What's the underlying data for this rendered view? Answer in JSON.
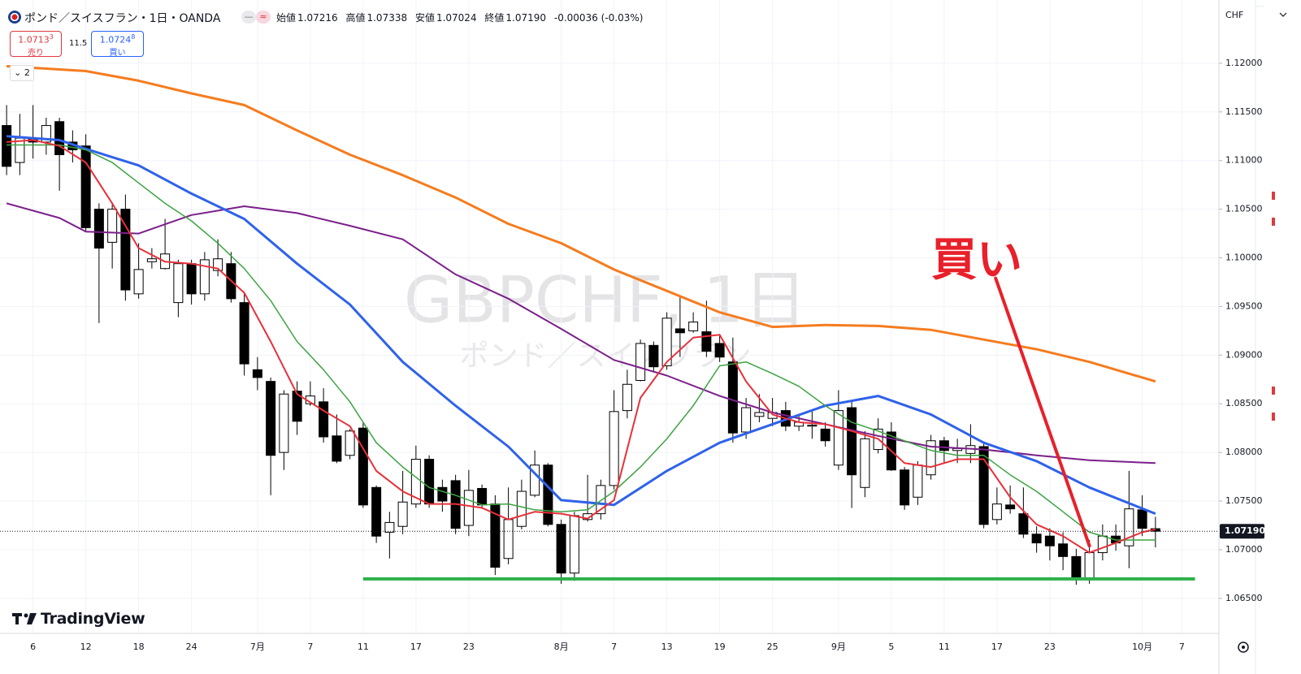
{
  "header": {
    "symbol": "ポンド／スイスフラン・1日・OANDA",
    "open_label": "始値",
    "open": "1.07216",
    "high_label": "高値",
    "high": "1.07338",
    "low_label": "安値",
    "low": "1.07024",
    "close_label": "終値",
    "close": "1.07190",
    "change": "-0.00036 (-0.03%)"
  },
  "trade": {
    "sell_main": "1.0713",
    "sell_sup": "3",
    "sell_label": "売り",
    "spread": "11.5",
    "buy_main": "1.0724",
    "buy_sup": "8",
    "buy_label": "買い"
  },
  "indicators_count": "2",
  "currency": "CHF",
  "brand": "TradingView",
  "chart_data": {
    "type": "candlestick",
    "watermark": "GBPCHF, 1日",
    "watermark_subtitle": "ポンド／スイスフラン",
    "up_color": "#ffffff",
    "down_color": "#000000",
    "ylim": [
      1.0614,
      1.1265
    ],
    "yticks": [
      {
        "value": 1.12,
        "label": "1.12000"
      },
      {
        "value": 1.115,
        "label": "1.11500"
      },
      {
        "value": 1.11,
        "label": "1.11000"
      },
      {
        "value": 1.105,
        "label": "1.10500"
      },
      {
        "value": 1.1,
        "label": "1.10000"
      },
      {
        "value": 1.095,
        "label": "1.09500"
      },
      {
        "value": 1.09,
        "label": "1.09000"
      },
      {
        "value": 1.085,
        "label": "1.08500"
      },
      {
        "value": 1.08,
        "label": "1.08000"
      },
      {
        "value": 1.075,
        "label": "1.07500"
      },
      {
        "value": 1.07,
        "label": "1.07000"
      },
      {
        "value": 1.065,
        "label": "1.06500"
      }
    ],
    "grid": true,
    "last_price": {
      "value": 1.0719,
      "label": "1.07190"
    },
    "categories": [
      null,
      null,
      "6",
      null,
      null,
      null,
      "12",
      null,
      null,
      null,
      "18",
      null,
      null,
      null,
      "24",
      null,
      null,
      null,
      null,
      "7月",
      null,
      null,
      null,
      "7",
      null,
      null,
      null,
      "11",
      null,
      null,
      null,
      "17",
      null,
      null,
      null,
      "23",
      null,
      null,
      null,
      null,
      null,
      null,
      "8月",
      null,
      null,
      null,
      "7",
      null,
      null,
      null,
      "13",
      null,
      null,
      null,
      "19",
      null,
      null,
      null,
      "25",
      null,
      null,
      null,
      null,
      "9月",
      null,
      null,
      null,
      "5",
      null,
      null,
      null,
      "11",
      null,
      null,
      null,
      "17",
      null,
      null,
      null,
      "23",
      null,
      null,
      null,
      null,
      null,
      null,
      "10月",
      null,
      null,
      "7",
      null,
      null
    ],
    "candles": [
      [
        1.1136,
        1.1157,
        1.1085,
        1.1094
      ],
      [
        1.1098,
        1.1148,
        1.1085,
        1.1123
      ],
      [
        1.1123,
        1.1157,
        1.1102,
        1.1119
      ],
      [
        1.1119,
        1.1144,
        1.1106,
        1.1136
      ],
      [
        1.114,
        1.1144,
        1.1069,
        1.1106
      ],
      [
        1.1119,
        1.1131,
        1.1098,
        1.1111
      ],
      [
        1.1115,
        1.1127,
        1.1027,
        1.1031
      ],
      [
        1.105,
        1.1056,
        1.0933,
        1.101
      ],
      [
        1.1016,
        1.1056,
        1.0989,
        1.105
      ],
      [
        1.105,
        1.1065,
        1.0956,
        1.0967
      ],
      [
        1.0963,
        1.1015,
        1.0958,
        1.0988
      ],
      [
        1.0996,
        1.101,
        1.0989,
        1.0999
      ],
      [
        1.0989,
        1.104,
        1.0988,
        1.1004
      ],
      [
        1.0954,
        1.0998,
        1.0939,
        1.0994
      ],
      [
        1.0994,
        1.0998,
        1.0952,
        1.0963
      ],
      [
        1.0963,
        1.1006,
        1.0956,
        1.0998
      ],
      [
        1.0987,
        1.1019,
        1.0981,
        1.0999
      ],
      [
        1.0994,
        1.1006,
        1.0954,
        1.0958
      ],
      [
        1.0954,
        1.0964,
        1.0879,
        1.0891
      ],
      [
        1.0885,
        1.0898,
        1.0864,
        1.0877
      ],
      [
        1.0873,
        1.0877,
        1.0756,
        1.0797
      ],
      [
        1.08,
        1.0864,
        1.0782,
        1.086
      ],
      [
        1.0863,
        1.0873,
        1.0818,
        1.0832
      ],
      [
        1.085,
        1.0873,
        1.0848,
        1.0858
      ],
      [
        1.0852,
        1.0866,
        1.081,
        1.0816
      ],
      [
        1.0817,
        1.0839,
        1.0789,
        1.0791
      ],
      [
        1.0797,
        1.0824,
        1.0793,
        1.0822
      ],
      [
        1.0825,
        1.0831,
        1.0743,
        1.0746
      ],
      [
        1.0764,
        1.0766,
        1.0707,
        1.0714
      ],
      [
        1.0718,
        1.0739,
        1.0691,
        1.0728
      ],
      [
        1.0724,
        1.0781,
        1.0716,
        1.0749
      ],
      [
        1.0747,
        1.0807,
        1.0743,
        1.0793
      ],
      [
        1.0793,
        1.0797,
        1.0743,
        1.0747
      ],
      [
        1.0764,
        1.0772,
        1.0739,
        1.075
      ],
      [
        1.0771,
        1.0777,
        1.0716,
        1.0722
      ],
      [
        1.0725,
        1.0782,
        1.0714,
        1.0761
      ],
      [
        1.0763,
        1.0767,
        1.0743,
        1.0746
      ],
      [
        1.0747,
        1.0756,
        1.0674,
        1.0682
      ],
      [
        1.0691,
        1.0764,
        1.0685,
        1.0731
      ],
      [
        1.0724,
        1.0772,
        1.0721,
        1.076
      ],
      [
        1.0756,
        1.0802,
        1.0754,
        1.0787
      ],
      [
        1.0787,
        1.0789,
        1.0724,
        1.0726
      ],
      [
        1.0726,
        1.0731,
        1.0665,
        1.0676
      ],
      [
        1.0676,
        1.0739,
        1.0668,
        1.0735
      ],
      [
        1.0731,
        1.0777,
        1.0729,
        1.0737
      ],
      [
        1.0737,
        1.0772,
        1.0731,
        1.0766
      ],
      [
        1.0766,
        1.0864,
        1.0762,
        1.0842
      ],
      [
        1.0843,
        1.0885,
        1.0835,
        1.087
      ],
      [
        1.0874,
        1.0916,
        1.0873,
        1.0912
      ],
      [
        1.091,
        1.0914,
        1.0883,
        1.0888
      ],
      [
        1.0889,
        1.0944,
        1.0885,
        1.0938
      ],
      [
        1.0927,
        1.096,
        1.0898,
        1.0923
      ],
      [
        1.0925,
        1.0944,
        1.0923,
        1.0934
      ],
      [
        1.0924,
        1.0956,
        1.0898,
        1.0904
      ],
      [
        1.0912,
        1.0921,
        1.0893,
        1.0898
      ],
      [
        1.0893,
        1.0918,
        1.081,
        1.082
      ],
      [
        1.0821,
        1.0856,
        1.0814,
        1.0846
      ],
      [
        1.0837,
        1.086,
        1.0831,
        1.0841
      ],
      [
        1.0835,
        1.0856,
        1.0827,
        1.0841
      ],
      [
        1.0843,
        1.0852,
        1.0822,
        1.0827
      ],
      [
        1.0827,
        1.0839,
        1.0822,
        1.0831
      ],
      [
        1.0827,
        1.0843,
        1.0814,
        1.0828
      ],
      [
        1.0824,
        1.0831,
        1.0806,
        1.0812
      ],
      [
        1.0787,
        1.0864,
        1.0782,
        1.0843
      ],
      [
        1.0846,
        1.0852,
        1.0743,
        1.0777
      ],
      [
        1.0764,
        1.0822,
        1.0754,
        1.0814
      ],
      [
        1.0803,
        1.0835,
        1.0799,
        1.0824
      ],
      [
        1.0821,
        1.0831,
        1.0781,
        1.0782
      ],
      [
        1.0782,
        1.0785,
        1.0741,
        1.0746
      ],
      [
        1.0754,
        1.0791,
        1.0746,
        1.0787
      ],
      [
        1.0777,
        1.0818,
        1.0772,
        1.0812
      ],
      [
        1.0812,
        1.0816,
        1.0789,
        1.0802
      ],
      [
        1.0802,
        1.0814,
        1.0789,
        1.0804
      ],
      [
        1.0799,
        1.0829,
        1.0789,
        1.0807
      ],
      [
        1.0806,
        1.081,
        1.0722,
        1.0726
      ],
      [
        1.0731,
        1.0764,
        1.0726,
        1.0747
      ],
      [
        1.0746,
        1.0766,
        1.0737,
        1.0742
      ],
      [
        1.0737,
        1.0764,
        1.0712,
        1.0716
      ],
      [
        1.0716,
        1.0724,
        1.0697,
        1.0707
      ],
      [
        1.0714,
        1.0722,
        1.0689,
        1.0704
      ],
      [
        1.0706,
        1.0718,
        1.0679,
        1.0693
      ],
      [
        1.0693,
        1.0701,
        1.0664,
        1.067
      ],
      [
        1.067,
        1.071,
        1.0665,
        1.0697
      ],
      [
        1.0697,
        1.0726,
        1.0689,
        1.0714
      ],
      [
        1.0714,
        1.0726,
        1.0699,
        1.0707
      ],
      [
        1.0704,
        1.0781,
        1.0681,
        1.0742
      ],
      [
        1.0741,
        1.0756,
        1.0714,
        1.0722
      ],
      [
        1.07216,
        1.07338,
        1.07024,
        1.0719
      ],
      null,
      null,
      null,
      null
    ],
    "series": [
      {
        "color": "#f57c1f",
        "line_width": 3,
        "x": [
          0,
          6,
          10,
          14,
          18,
          22,
          26,
          30,
          34,
          38,
          42,
          46,
          50,
          54,
          58,
          62,
          66,
          70,
          74,
          78,
          82,
          87
        ],
        "values": [
          1.1197,
          1.1192,
          1.1182,
          1.1169,
          1.1157,
          1.1131,
          1.1106,
          1.1085,
          1.1062,
          1.1035,
          1.1015,
          1.0988,
          1.0966,
          1.0944,
          1.0929,
          1.0931,
          1.093,
          1.0926,
          1.0916,
          1.0906,
          1.0893,
          1.0873
        ]
      },
      {
        "color": "#7b1f8a",
        "line_width": 2,
        "x": [
          0,
          4,
          6,
          10,
          14,
          18,
          22,
          26,
          30,
          34,
          38,
          42,
          46,
          50,
          54,
          58,
          62,
          66,
          70,
          74,
          78,
          82,
          87
        ],
        "values": [
          1.1056,
          1.1041,
          1.1027,
          1.1025,
          1.1044,
          1.1053,
          1.1046,
          1.1033,
          1.1019,
          1.0983,
          1.0958,
          1.0927,
          1.0895,
          1.0879,
          1.0858,
          1.0841,
          1.0829,
          1.0817,
          1.0806,
          1.0803,
          1.0797,
          1.0792,
          1.0789
        ]
      },
      {
        "color": "#2f62ea",
        "line_width": 3,
        "x": [
          0,
          4,
          6,
          10,
          14,
          18,
          22,
          26,
          30,
          34,
          38,
          42,
          46,
          50,
          54,
          58,
          62,
          66,
          70,
          74,
          78,
          82,
          87
        ],
        "values": [
          1.1125,
          1.1121,
          1.1112,
          1.1095,
          1.1066,
          1.104,
          1.0994,
          1.0952,
          1.0893,
          1.0848,
          1.0806,
          1.0751,
          1.0746,
          1.0781,
          1.081,
          1.0829,
          1.0848,
          1.0858,
          1.0839,
          1.081,
          1.0791,
          1.0764,
          1.0737
        ]
      },
      {
        "color": "#3ca341",
        "line_width": 1.5,
        "x": [
          0,
          2,
          4,
          6,
          8,
          10,
          12,
          14,
          16,
          18,
          20,
          22,
          24,
          26,
          28,
          30,
          32,
          34,
          36,
          38,
          40,
          42,
          44,
          46,
          48,
          50,
          52,
          54,
          56,
          58,
          60,
          62,
          64,
          66,
          68,
          70,
          72,
          74,
          76,
          78,
          80,
          82,
          84,
          86,
          87
        ],
        "values": [
          1.1116,
          1.1116,
          1.1116,
          1.1111,
          1.1098,
          1.1077,
          1.1056,
          1.1038,
          1.1015,
          1.0989,
          1.0956,
          1.0914,
          1.0885,
          1.0852,
          1.081,
          1.0785,
          1.0764,
          1.0756,
          1.0746,
          1.0747,
          1.0741,
          1.0739,
          1.0741,
          1.076,
          1.0785,
          1.0814,
          1.0848,
          1.0889,
          1.0893,
          1.0881,
          1.0868,
          1.0848,
          1.0831,
          1.0822,
          1.0812,
          1.0802,
          1.0797,
          1.0797,
          1.0777,
          1.076,
          1.0739,
          1.0718,
          1.071,
          1.071,
          1.071
        ]
      },
      {
        "color": "#e8303a",
        "line_width": 2,
        "x": [
          0,
          2,
          4,
          6,
          8,
          10,
          12,
          14,
          16,
          18,
          20,
          22,
          24,
          26,
          28,
          30,
          32,
          34,
          36,
          38,
          40,
          42,
          44,
          46,
          48,
          50,
          52,
          54,
          56,
          58,
          60,
          62,
          64,
          66,
          68,
          70,
          72,
          74,
          76,
          78,
          80,
          82,
          84,
          86,
          87
        ],
        "values": [
          1.1119,
          1.1121,
          1.1115,
          1.1098,
          1.1056,
          1.101,
          1.0996,
          1.0994,
          1.0989,
          1.0964,
          1.0914,
          1.086,
          1.0843,
          1.0827,
          1.0781,
          1.076,
          1.0747,
          1.0747,
          1.0743,
          1.0731,
          1.0739,
          1.0737,
          1.0732,
          1.0751,
          1.0856,
          1.0893,
          1.0918,
          1.0921,
          1.0873,
          1.0839,
          1.0831,
          1.0829,
          1.0822,
          1.0814,
          1.0789,
          1.0785,
          1.0793,
          1.0793,
          1.0754,
          1.0726,
          1.0714,
          1.0697,
          1.0707,
          1.0718,
          1.0721
        ]
      }
    ],
    "support": {
      "x": [
        27,
        90
      ],
      "y": 1.067,
      "color": "#2db14a"
    },
    "arrow": {
      "x": [
        74.9,
        82.0
      ],
      "y": [
        1.0979,
        1.0704
      ],
      "color": "#e8202a"
    },
    "annotation": {
      "text": "買い",
      "color": "#e8202a"
    }
  }
}
